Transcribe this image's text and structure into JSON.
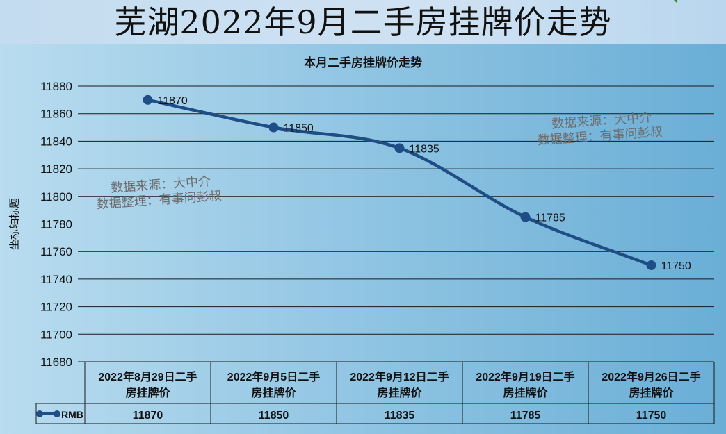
{
  "page": {
    "title": "芜湖2022年9月二手房挂牌价走势"
  },
  "watermarks": [
    {
      "line1": "数据来源：大中介",
      "line2": "数据整理：有事问彭叔"
    },
    {
      "line1": "数据来源：大中介",
      "line2": "数据整理：有事问彭叔"
    }
  ],
  "chart_data": {
    "type": "line",
    "title": "本月二手房挂牌价走势",
    "xlabel": "",
    "ylabel": "坐标轴标题",
    "categories": [
      "2022年8月29日二手房挂牌价",
      "2022年9月5日二手房挂牌价",
      "2022年9月12日二手房挂牌价",
      "2022年9月19日二手房挂牌价",
      "2022年9月26日二手房挂牌价"
    ],
    "category_lines": [
      [
        "2022年8月29日二手",
        "房挂牌价"
      ],
      [
        "2022年9月5日二手",
        "房挂牌价"
      ],
      [
        "2022年9月12日二手",
        "房挂牌价"
      ],
      [
        "2022年9月19日二手",
        "房挂牌价"
      ],
      [
        "2022年9月26日二手",
        "房挂牌价"
      ]
    ],
    "series": [
      {
        "name": "RMB",
        "values": [
          11870,
          11850,
          11835,
          11785,
          11750
        ],
        "color": "#1f4e87"
      }
    ],
    "ylim": [
      11680,
      11880
    ],
    "yticks": [
      11880,
      11860,
      11840,
      11820,
      11800,
      11780,
      11760,
      11740,
      11720,
      11700,
      11680
    ],
    "grid": true,
    "smooth": true,
    "data_labels": true,
    "data_table": true
  }
}
